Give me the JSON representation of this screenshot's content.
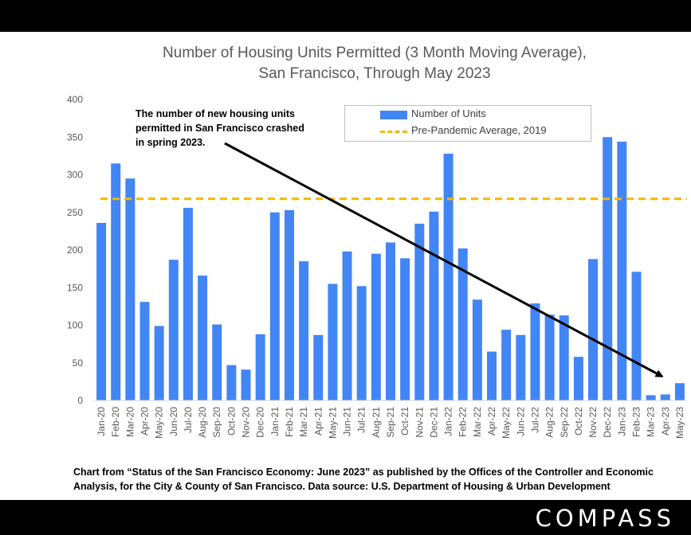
{
  "page": {
    "caption_line1": "Chart from “Status of the San Francisco Economy: June 2023” as published by the Offices of the Controller and Economic",
    "caption_line2": "Analysis, for the City & County of San Francisco. Data source:  U.S. Department of Housing & Urban Development",
    "brand": "COMPASS"
  },
  "chart_data": {
    "type": "bar",
    "title": "Number of Housing Units Permitted (3 Month Moving Average),",
    "subtitle": "San Francisco, Through May 2023",
    "xlabel": "",
    "ylabel": "",
    "ylim": [
      0,
      400
    ],
    "yticks": [
      0,
      50,
      100,
      150,
      200,
      250,
      300,
      350,
      400
    ],
    "grid": false,
    "legend_position": "top-right",
    "categories": [
      "Jan-20",
      "Feb-20",
      "Mar-20",
      "Apr-20",
      "May-20",
      "Jun-20",
      "Jul-20",
      "Aug-20",
      "Sep-20",
      "Oct-20",
      "Nov-20",
      "Dec-20",
      "Jan-21",
      "Feb-21",
      "Mar-21",
      "Apr-21",
      "May-21",
      "Jun-21",
      "Jul-21",
      "Aug-21",
      "Sep-21",
      "Oct-21",
      "Nov-21",
      "Dec-21",
      "Jan-22",
      "Feb-22",
      "Mar-22",
      "Apr-22",
      "May-22",
      "Jun-22",
      "Jul-22",
      "Aug-22",
      "Sep-22",
      "Oct-22",
      "Nov-22",
      "Dec-22",
      "Jan-23",
      "Feb-23",
      "Mar-23",
      "Apr-23",
      "May-23"
    ],
    "series": [
      {
        "name": "Number of Units",
        "color": "#4285f4",
        "values": [
          236,
          315,
          295,
          131,
          99,
          187,
          256,
          166,
          101,
          47,
          41,
          88,
          250,
          253,
          185,
          87,
          155,
          198,
          152,
          195,
          210,
          189,
          235,
          251,
          328,
          202,
          134,
          65,
          94,
          87,
          129,
          114,
          113,
          58,
          188,
          350,
          344,
          171,
          7,
          8,
          23
        ]
      }
    ],
    "reference_line": {
      "name": "Pre-Pandemic Average, 2019",
      "value": 268,
      "color": "#f2b800",
      "style": "dashed"
    },
    "annotation": {
      "text_line1": "The number of new housing units",
      "text_line2": "permitted in San Francisco crashed",
      "text_line3": "in spring 2023.",
      "arrow_from_category": "Jul-21",
      "arrow_to_category": "Apr-23"
    }
  }
}
